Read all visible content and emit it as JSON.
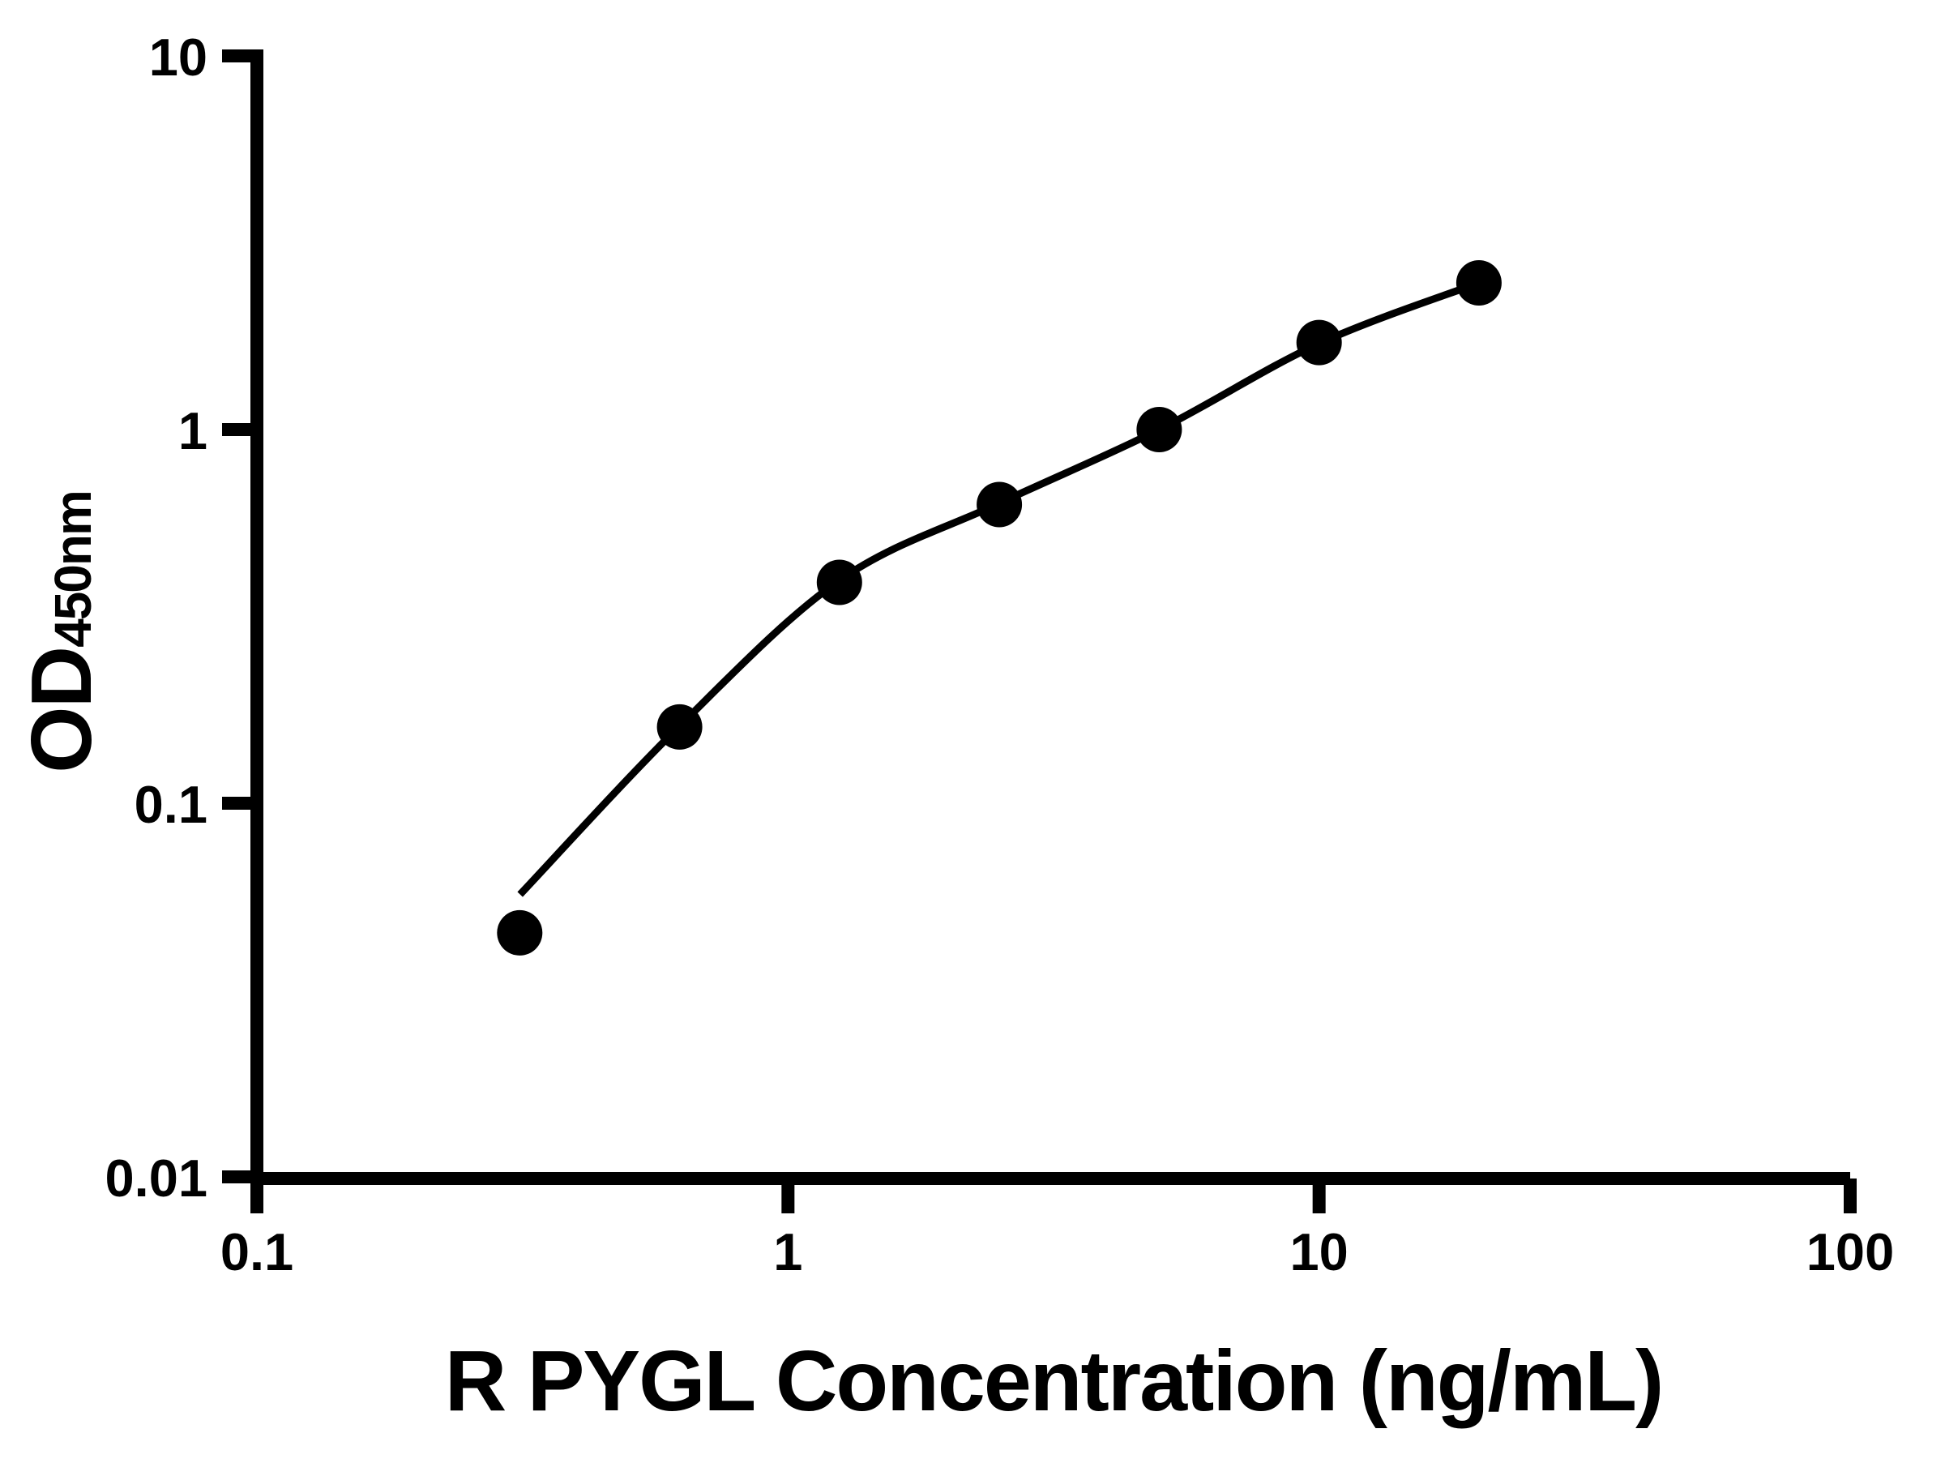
{
  "figure": {
    "background_color": "#ffffff",
    "ink_color": "#000000"
  },
  "chart_data": {
    "type": "scatter",
    "title": "",
    "xlabel": "R PYGL Concentration (ng/mL)",
    "ylabel_main": "OD",
    "ylabel_sub": "450nm",
    "x_scale": "log",
    "y_scale": "log",
    "xlim": [
      0.1,
      100
    ],
    "ylim": [
      0.01,
      10
    ],
    "grid": false,
    "legend": null,
    "marker_color": "#000000",
    "line_color": "#000000",
    "x_ticks": [
      {
        "value": 0.1,
        "label": "0.1"
      },
      {
        "value": 1,
        "label": "1"
      },
      {
        "value": 10,
        "label": "10"
      },
      {
        "value": 100,
        "label": "100"
      }
    ],
    "y_ticks": [
      {
        "value": 10,
        "label": "10"
      },
      {
        "value": 1,
        "label": "1"
      },
      {
        "value": 0.1,
        "label": "0.1"
      },
      {
        "value": 0.01,
        "label": "0.01"
      }
    ],
    "series": [
      {
        "name": "standard-points",
        "type": "scatter",
        "x": [
          0.3125,
          0.625,
          1.25,
          2.5,
          5,
          10,
          20
        ],
        "y": [
          0.045,
          0.16,
          0.39,
          0.63,
          1.0,
          1.71,
          2.47
        ]
      },
      {
        "name": "fitted-curve",
        "type": "line",
        "x": [
          0.313,
          0.625,
          1.25,
          2.5,
          5,
          10,
          20
        ],
        "y": [
          0.057,
          0.161,
          0.395,
          0.635,
          1.0,
          1.7,
          2.47
        ]
      }
    ]
  }
}
